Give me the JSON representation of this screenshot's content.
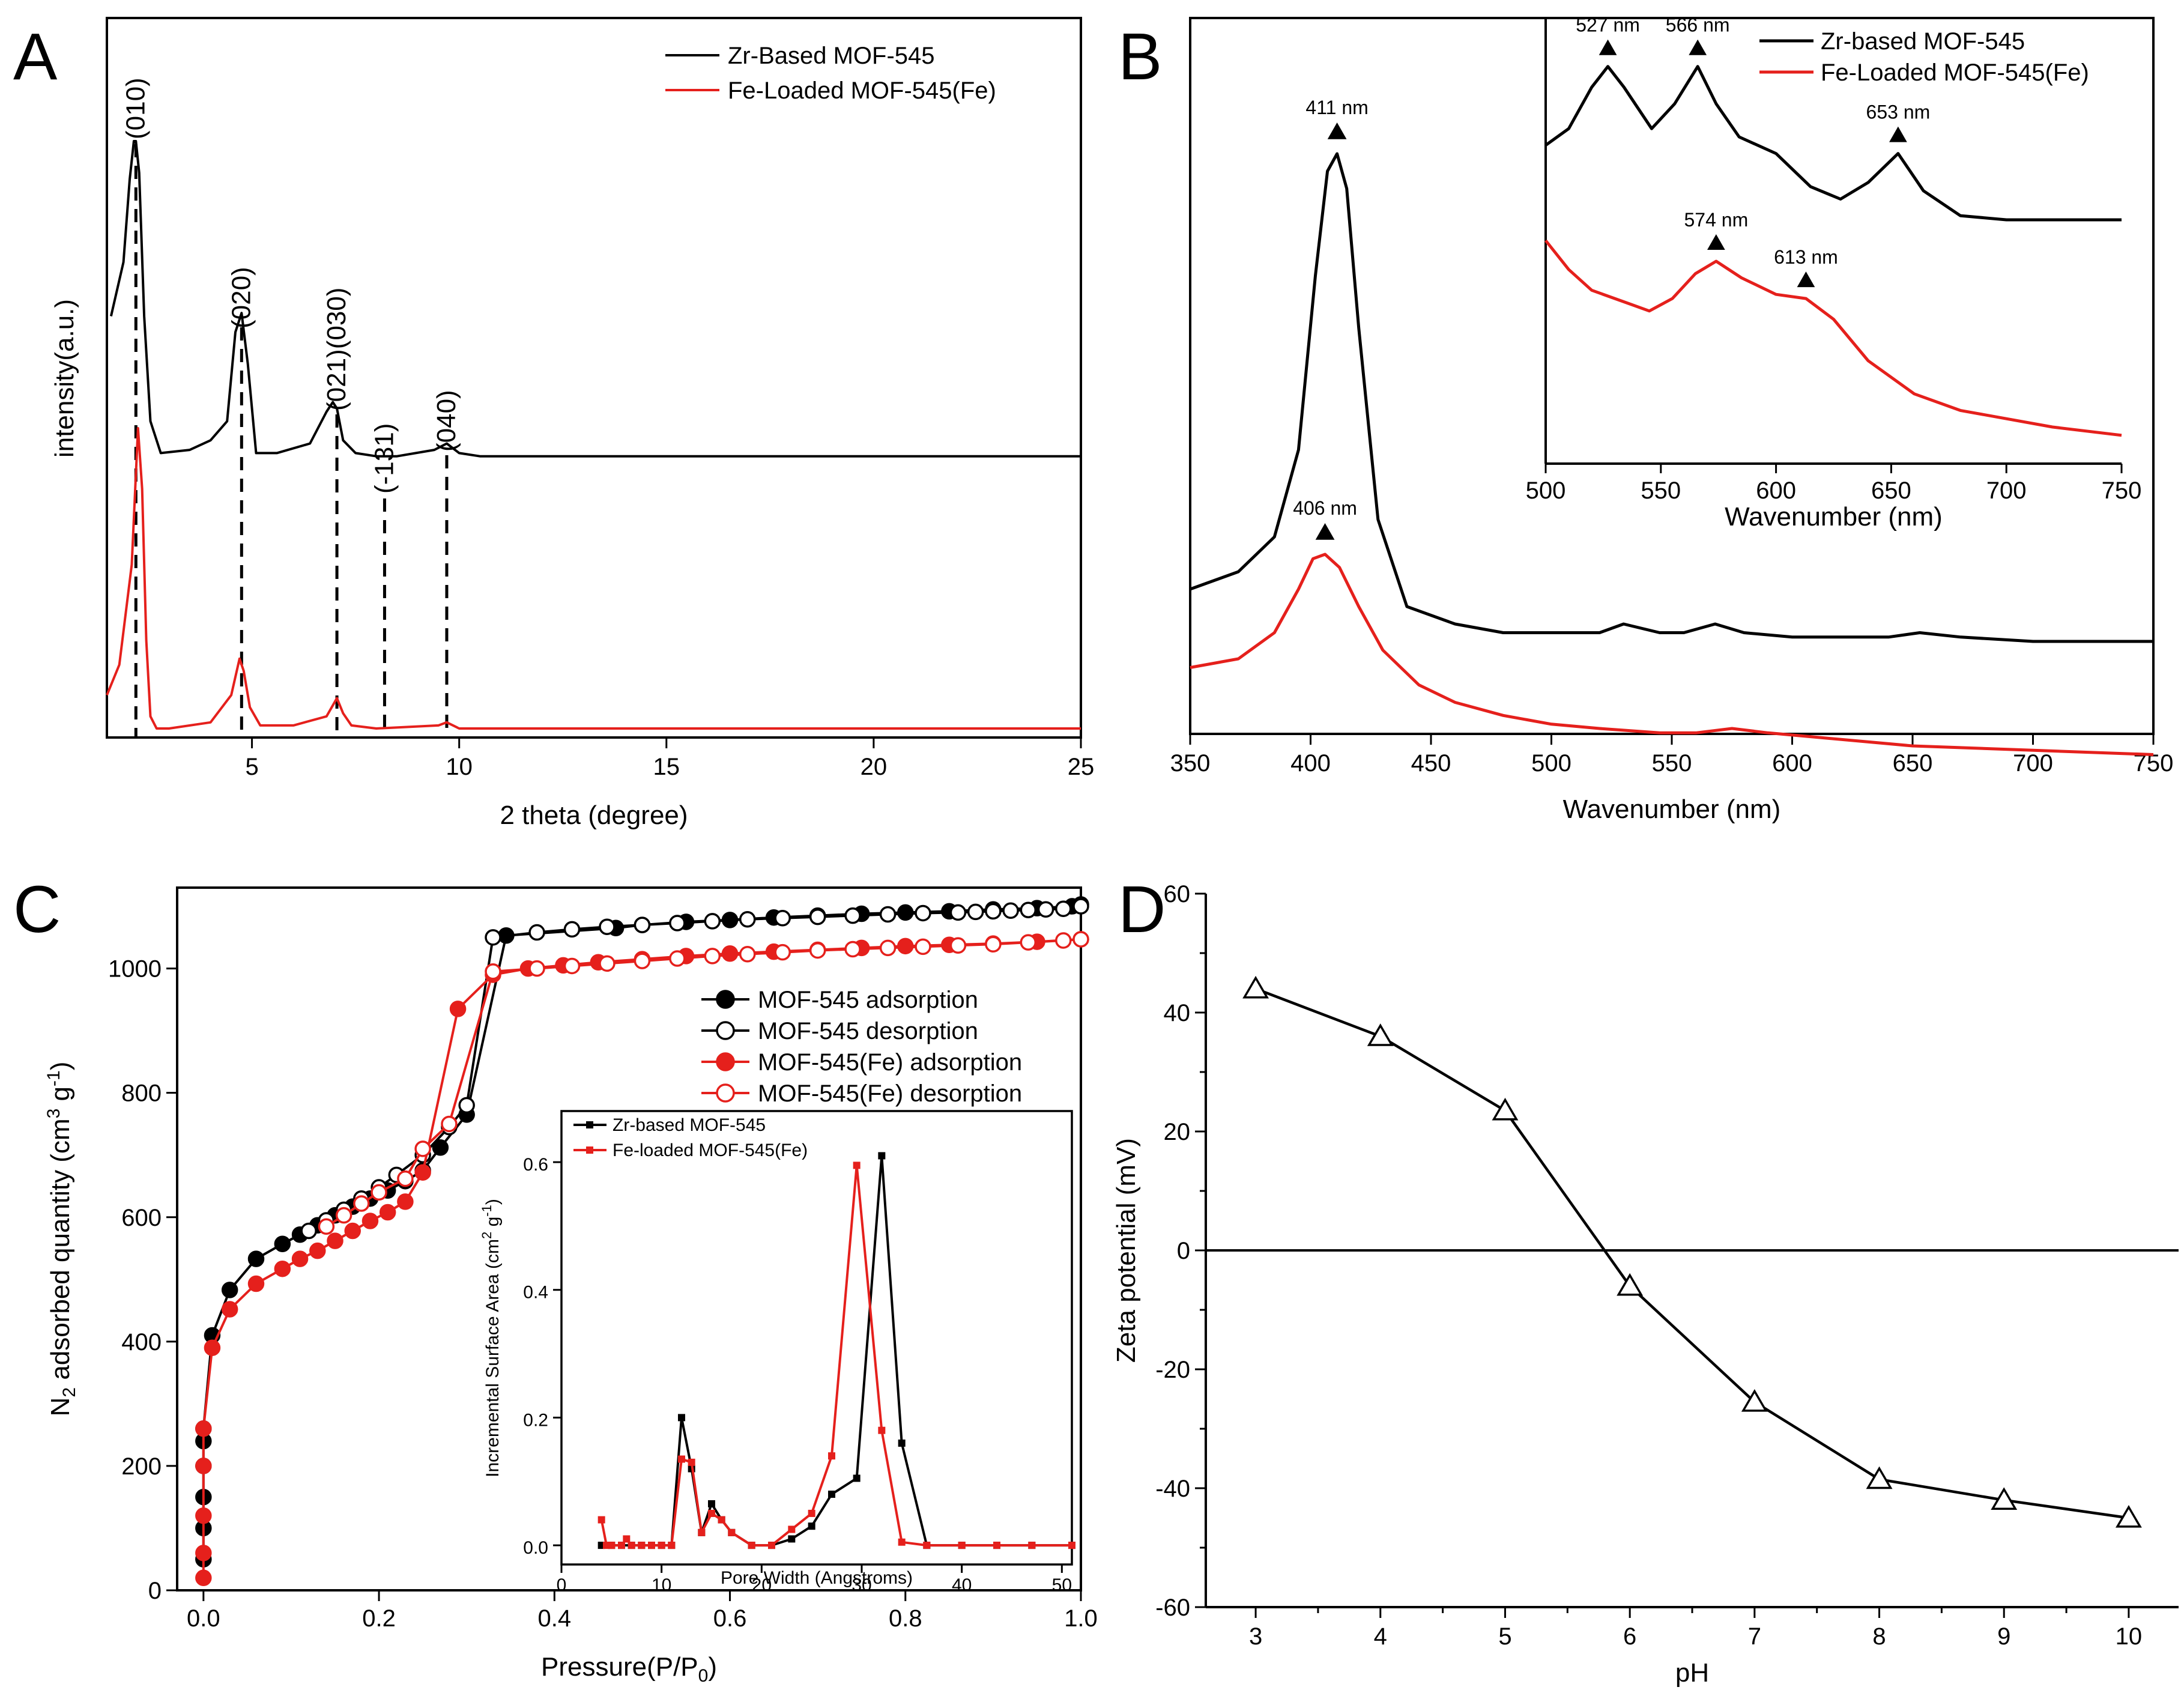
{
  "panels": {
    "A": {
      "label": "A"
    },
    "B": {
      "label": "B"
    },
    "C": {
      "label": "C"
    },
    "D": {
      "label": "D"
    }
  },
  "colors": {
    "black": "#000000",
    "red": "#e5201c"
  },
  "chart_data": [
    {
      "id": "A",
      "type": "line",
      "title": "",
      "xlabel": "2 theta (degree)",
      "ylabel": "intensity(a.u.)",
      "xlim": [
        1.5,
        25
      ],
      "xticks": [
        5,
        10,
        15,
        20,
        25
      ],
      "legend_position": "top-right",
      "legend": [
        "Zr-Based MOF-545",
        "Fe-Loaded MOF-545(Fe)"
      ],
      "peaks": [
        {
          "label": "(010)",
          "x": 2.2
        },
        {
          "label": "(020)",
          "x": 4.75
        },
        {
          "label": "(021)(030)",
          "x": 7.05
        },
        {
          "label": "(-131)",
          "x": 8.2
        },
        {
          "label": "(040)",
          "x": 9.7
        }
      ],
      "series": [
        {
          "name": "Zr-Based MOF-545",
          "color": "#000000",
          "x": [
            1.6,
            1.9,
            2.05,
            2.15,
            2.2,
            2.28,
            2.4,
            2.55,
            2.8,
            3.5,
            4.0,
            4.4,
            4.6,
            4.75,
            4.9,
            5.1,
            5.6,
            6.4,
            6.8,
            6.95,
            7.05,
            7.2,
            7.5,
            8.0,
            8.2,
            8.5,
            9.4,
            9.7,
            10.0,
            10.5,
            12,
            14.5,
            17,
            20,
            23,
            25
          ],
          "y": [
            0.45,
            0.62,
            0.88,
            1.0,
            1.0,
            0.9,
            0.45,
            0.12,
            0.02,
            0.03,
            0.06,
            0.12,
            0.4,
            0.46,
            0.3,
            0.02,
            0.02,
            0.05,
            0.15,
            0.18,
            0.16,
            0.06,
            0.02,
            0.01,
            0.01,
            0.01,
            0.03,
            0.05,
            0.02,
            0.01,
            0.01,
            0.01,
            0.01,
            0.01,
            0.01,
            0.01
          ]
        },
        {
          "name": "Fe-Loaded MOF-545(Fe)",
          "color": "#e5201c",
          "x": [
            1.5,
            1.8,
            2.1,
            2.25,
            2.35,
            2.45,
            2.55,
            2.7,
            3.0,
            4.0,
            4.5,
            4.7,
            4.8,
            4.95,
            5.2,
            6.0,
            6.8,
            7.05,
            7.2,
            7.4,
            8.0,
            9.5,
            9.7,
            10.0,
            11,
            14,
            17,
            20,
            23,
            25
          ],
          "y": [
            0.12,
            0.22,
            0.55,
            1.0,
            0.8,
            0.3,
            0.05,
            0.01,
            0.01,
            0.03,
            0.12,
            0.24,
            0.2,
            0.08,
            0.02,
            0.02,
            0.05,
            0.11,
            0.06,
            0.02,
            0.01,
            0.02,
            0.03,
            0.01,
            0.01,
            0.01,
            0.01,
            0.01,
            0.01,
            0.01
          ]
        }
      ]
    },
    {
      "id": "B",
      "type": "line",
      "title": "",
      "xlabel": "Wavenumber (nm)",
      "ylabel": "",
      "xlim": [
        350,
        750
      ],
      "xticks": [
        350,
        400,
        450,
        500,
        550,
        600,
        650,
        700,
        750
      ],
      "annotations": [
        {
          "label": "411 nm",
          "x": 411,
          "series": "Zr-based MOF-545"
        },
        {
          "label": "406 nm",
          "x": 406,
          "series": "Fe-Loaded MOF-545(Fe)"
        }
      ],
      "series": [
        {
          "name": "Zr-based MOF-545",
          "color": "#000000",
          "x": [
            350,
            370,
            385,
            395,
            402,
            407,
            411,
            415,
            420,
            428,
            440,
            460,
            480,
            500,
            520,
            530,
            545,
            555,
            568,
            580,
            600,
            620,
            640,
            653,
            670,
            700,
            750
          ],
          "y": [
            0.22,
            0.24,
            0.28,
            0.38,
            0.58,
            0.7,
            0.72,
            0.68,
            0.52,
            0.3,
            0.2,
            0.18,
            0.17,
            0.17,
            0.17,
            0.18,
            0.17,
            0.17,
            0.18,
            0.17,
            0.165,
            0.165,
            0.165,
            0.17,
            0.165,
            0.16,
            0.16
          ]
        },
        {
          "name": "Fe-Loaded MOF-545(Fe)",
          "color": "#e5201c",
          "x": [
            350,
            370,
            385,
            395,
            401,
            406,
            412,
            420,
            430,
            445,
            460,
            480,
            500,
            520,
            545,
            560,
            575,
            590,
            610,
            630,
            650,
            700,
            750
          ],
          "y": [
            0.13,
            0.14,
            0.17,
            0.22,
            0.255,
            0.26,
            0.245,
            0.2,
            0.15,
            0.11,
            0.09,
            0.075,
            0.065,
            0.06,
            0.055,
            0.055,
            0.06,
            0.055,
            0.05,
            0.045,
            0.04,
            0.035,
            0.03
          ]
        }
      ]
    },
    {
      "id": "B-inset",
      "type": "line",
      "title": "",
      "xlabel": "Wavenumber (nm)",
      "ylabel": "",
      "xlim": [
        500,
        750
      ],
      "xticks": [
        500,
        550,
        600,
        650,
        700,
        750
      ],
      "legend_position": "top-right",
      "legend": [
        "Zr-based MOF-545",
        "Fe-Loaded MOF-545(Fe)"
      ],
      "annotations": [
        {
          "label": "527 nm",
          "x": 527,
          "series": "Zr-based MOF-545"
        },
        {
          "label": "566 nm",
          "x": 566,
          "series": "Zr-based MOF-545"
        },
        {
          "label": "653 nm",
          "x": 653,
          "series": "Zr-based MOF-545"
        },
        {
          "label": "574 nm",
          "x": 574,
          "series": "Fe-Loaded MOF-545(Fe)"
        },
        {
          "label": "613 nm",
          "x": 613,
          "series": "Fe-Loaded MOF-545(Fe)"
        }
      ],
      "series": [
        {
          "name": "Zr-based MOF-545",
          "color": "#000000",
          "x": [
            500,
            510,
            520,
            527,
            534,
            546,
            556,
            566,
            574,
            584,
            600,
            615,
            628,
            640,
            653,
            664,
            680,
            700,
            750
          ],
          "y": [
            0.78,
            0.82,
            0.92,
            0.97,
            0.92,
            0.82,
            0.88,
            0.97,
            0.88,
            0.8,
            0.76,
            0.68,
            0.65,
            0.69,
            0.76,
            0.67,
            0.61,
            0.6,
            0.6
          ]
        },
        {
          "name": "Fe-Loaded MOF-545(Fe)",
          "color": "#e5201c",
          "x": [
            500,
            510,
            520,
            535,
            545,
            555,
            565,
            574,
            585,
            600,
            613,
            625,
            640,
            660,
            680,
            700,
            720,
            750
          ],
          "y": [
            0.55,
            0.48,
            0.43,
            0.4,
            0.38,
            0.41,
            0.47,
            0.5,
            0.46,
            0.42,
            0.41,
            0.36,
            0.26,
            0.18,
            0.14,
            0.12,
            0.1,
            0.08
          ]
        }
      ]
    },
    {
      "id": "C",
      "type": "scatter",
      "title": "",
      "xlabel": "Pressure(P/P0)",
      "ylabel": "N2 adsorbed quantity (cm3 g-1)",
      "xlim": [
        -0.03,
        1.0
      ],
      "ylim": [
        0,
        1130
      ],
      "xticks": [
        0.0,
        0.2,
        0.4,
        0.6,
        0.8,
        1.0
      ],
      "yticks": [
        0,
        200,
        400,
        600,
        800,
        1000
      ],
      "legend_position": "center-right",
      "legend": [
        "MOF-545 adsorption",
        "MOF-545 desorption",
        "MOF-545(Fe) adsorption",
        "MOF-545(Fe) desorption"
      ],
      "series": [
        {
          "name": "MOF-545 adsorption",
          "color": "#000000",
          "marker": "filled-circle",
          "x": [
            0.0,
            0.0,
            0.0,
            0.0,
            0.0,
            0.0,
            0.01,
            0.03,
            0.06,
            0.09,
            0.11,
            0.13,
            0.15,
            0.17,
            0.19,
            0.21,
            0.23,
            0.25,
            0.27,
            0.3,
            0.345,
            0.47,
            0.5,
            0.55,
            0.6,
            0.65,
            0.7,
            0.75,
            0.8,
            0.85,
            0.9,
            0.95,
            0.99,
            1.0
          ],
          "y": [
            50,
            100,
            150,
            200,
            240,
            260,
            410,
            483,
            533,
            557,
            572,
            587,
            603,
            617,
            630,
            643,
            658,
            675,
            712,
            765,
            1053,
            1065,
            1070,
            1075,
            1078,
            1082,
            1085,
            1088,
            1090,
            1092,
            1095,
            1097,
            1100,
            1103
          ]
        },
        {
          "name": "MOF-545 desorption",
          "color": "#000000",
          "marker": "open-circle",
          "x": [
            0.33,
            0.38,
            0.42,
            0.46,
            0.5,
            0.54,
            0.58,
            0.62,
            0.66,
            0.7,
            0.74,
            0.78,
            0.82,
            0.86,
            0.88,
            0.9,
            0.92,
            0.94,
            0.96,
            0.98,
            1.0,
            0.3,
            0.28,
            0.25,
            0.22,
            0.2,
            0.18,
            0.16,
            0.14,
            0.12
          ],
          "y": [
            1050,
            1058,
            1063,
            1067,
            1070,
            1073,
            1076,
            1079,
            1081,
            1083,
            1085,
            1087,
            1089,
            1090,
            1091,
            1092,
            1093,
            1094,
            1095,
            1096,
            1100,
            780,
            745,
            700,
            668,
            648,
            630,
            612,
            595,
            578
          ]
        },
        {
          "name": "MOF-545(Fe) adsorption",
          "color": "#e5201c",
          "marker": "filled-circle",
          "x": [
            0.0,
            0.0,
            0.0,
            0.0,
            0.0,
            0.01,
            0.03,
            0.06,
            0.09,
            0.11,
            0.13,
            0.15,
            0.17,
            0.19,
            0.21,
            0.23,
            0.25,
            0.29,
            0.33,
            0.37,
            0.41,
            0.45,
            0.5,
            0.55,
            0.6,
            0.65,
            0.7,
            0.75,
            0.8,
            0.85,
            0.9,
            0.95,
            1.0
          ],
          "y": [
            20,
            60,
            120,
            200,
            260,
            390,
            452,
            493,
            517,
            533,
            546,
            562,
            578,
            594,
            608,
            625,
            672,
            935,
            990,
            1000,
            1005,
            1010,
            1015,
            1020,
            1024,
            1027,
            1030,
            1033,
            1036,
            1038,
            1040,
            1043,
            1047
          ]
        },
        {
          "name": "MOF-545(Fe) desorption",
          "color": "#e5201c",
          "marker": "open-circle",
          "x": [
            0.33,
            0.38,
            0.42,
            0.46,
            0.5,
            0.54,
            0.58,
            0.62,
            0.66,
            0.7,
            0.74,
            0.78,
            0.82,
            0.86,
            0.9,
            0.94,
            0.98,
            1.0,
            0.28,
            0.25,
            0.23,
            0.2,
            0.18,
            0.16,
            0.14
          ],
          "y": [
            995,
            1000,
            1004,
            1008,
            1012,
            1016,
            1020,
            1023,
            1026,
            1029,
            1031,
            1033,
            1035,
            1037,
            1039,
            1042,
            1045,
            1047,
            750,
            710,
            662,
            640,
            622,
            603,
            585
          ]
        }
      ]
    },
    {
      "id": "C-inset",
      "type": "line",
      "title": "",
      "xlabel": "Pore Width (Angstroms)",
      "ylabel": "Incremental Surface Area (cm2 g-1)",
      "xlim": [
        0,
        51
      ],
      "ylim": [
        -0.03,
        0.68
      ],
      "xticks": [
        0,
        10,
        20,
        30,
        40,
        50
      ],
      "yticks": [
        0.0,
        0.2,
        0.4,
        0.6
      ],
      "legend_position": "top-left",
      "legend": [
        "Zr-based MOF-545",
        "Fe-loaded MOF-545(Fe)"
      ],
      "series": [
        {
          "name": "Zr-based MOF-545",
          "color": "#000000",
          "x": [
            4.0,
            5.0,
            6.0,
            7.0,
            8.0,
            9.0,
            10.0,
            11.0,
            12.0,
            13.0,
            14.0,
            15.0,
            16.0,
            17.0,
            19.0,
            21.0,
            23.0,
            25.0,
            27.0,
            29.5,
            32.0,
            34.0,
            36.5,
            40.0,
            43.5,
            47.0,
            51.0
          ],
          "y": [
            0.0,
            0.0,
            0.0,
            0.0,
            0.0,
            0.0,
            0.0,
            0.0,
            0.2,
            0.12,
            0.02,
            0.065,
            0.04,
            0.02,
            0.0,
            0.0,
            0.01,
            0.03,
            0.08,
            0.105,
            0.61,
            0.16,
            0.0,
            0.0,
            0.0,
            0.0,
            0.0
          ]
        },
        {
          "name": "Fe-loaded MOF-545(Fe)",
          "color": "#e5201c",
          "x": [
            4.0,
            4.5,
            5.0,
            6.0,
            6.5,
            7.0,
            8.0,
            9.0,
            10.0,
            11.0,
            12.0,
            13.0,
            14.0,
            15.0,
            16.0,
            17.0,
            19.0,
            21.0,
            23.0,
            25.0,
            27.0,
            29.5,
            32.0,
            34.0,
            36.5,
            40.0,
            43.5,
            47.0,
            51.0
          ],
          "y": [
            0.04,
            0.0,
            0.0,
            0.0,
            0.01,
            0.0,
            0.0,
            0.0,
            0.0,
            0.0,
            0.135,
            0.13,
            0.02,
            0.05,
            0.04,
            0.02,
            0.0,
            0.0,
            0.025,
            0.05,
            0.14,
            0.595,
            0.18,
            0.005,
            0.0,
            0.0,
            0.0,
            0.0,
            0.0
          ]
        }
      ]
    },
    {
      "id": "D",
      "type": "line",
      "title": "",
      "xlabel": "pH",
      "ylabel": "Zeta potential (mV)",
      "xlim": [
        2.6,
        10.4
      ],
      "ylim": [
        -60,
        60
      ],
      "xticks": [
        3,
        4,
        5,
        6,
        7,
        8,
        9,
        10
      ],
      "yticks": [
        -60,
        -40,
        -20,
        0,
        20,
        40,
        60
      ],
      "reference_line_y": 0,
      "series": [
        {
          "name": "Zeta potential",
          "color": "#000000",
          "marker": "open-triangle",
          "x": [
            3,
            4,
            5,
            6,
            7,
            8,
            9,
            10
          ],
          "y": [
            44,
            36,
            23.5,
            -6,
            -25.5,
            -38.5,
            -42,
            -45
          ]
        }
      ]
    }
  ]
}
